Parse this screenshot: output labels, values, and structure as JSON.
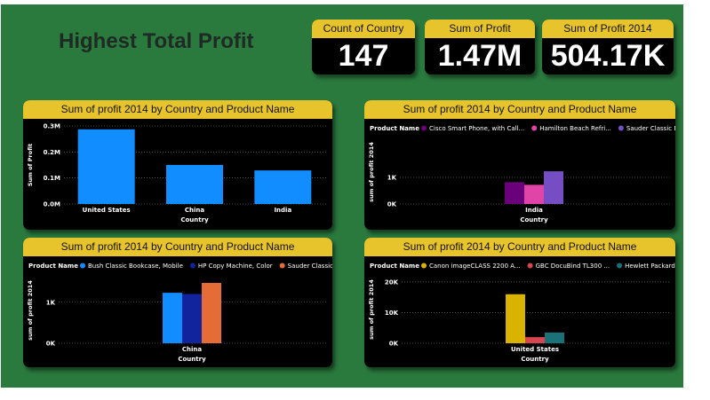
{
  "page_title": "Highest Total Profit",
  "kpis": [
    {
      "label": "Count of Country",
      "value": "147"
    },
    {
      "label": "Sum of Profit",
      "value": "1.47M"
    },
    {
      "label": "Sum of Profit 2014",
      "value": "504.17K"
    }
  ],
  "colors": {
    "background": "#2a7a3e",
    "accent": "#e8c42c",
    "panel": "#000000"
  },
  "chart_data": [
    {
      "type": "bar",
      "title": "Sum of profit 2014 by Country and Product Name",
      "xlabel": "Country",
      "ylabel": "Sum of Profit",
      "ylim": [
        0,
        300000
      ],
      "yticks": [
        {
          "v": 0,
          "label": "0.0M"
        },
        {
          "v": 100000,
          "label": "0.1M"
        },
        {
          "v": 200000,
          "label": "0.2M"
        },
        {
          "v": 300000,
          "label": "0.3M"
        }
      ],
      "categories": [
        "United States",
        "China",
        "India"
      ],
      "series": [
        {
          "name": "Sum of Profit",
          "color": "#118dff",
          "values": [
            287000,
            150000,
            129000
          ]
        }
      ]
    },
    {
      "type": "bar",
      "title": "Sum of profit 2014 by Country and Product Name",
      "xlabel": "Country",
      "ylabel": "sum of profit 2014",
      "legend_title": "Product Name",
      "ylim": [
        0,
        2400
      ],
      "yticks": [
        {
          "v": 0,
          "label": "0K"
        },
        {
          "v": 1000,
          "label": "1K"
        }
      ],
      "categories": [
        "India"
      ],
      "series": [
        {
          "name": "Cisco Smart Phone, with Call...",
          "color": "#6b007b",
          "values": [
            820
          ]
        },
        {
          "name": "Hamilton Beach Refri...",
          "color": "#e044a7",
          "values": [
            720
          ]
        },
        {
          "name": "Sauder Classic B...",
          "color": "#744ec2",
          "values": [
            1230
          ]
        }
      ]
    },
    {
      "type": "bar",
      "title": "Sum of profit 2014 by Country and Product Name",
      "xlabel": "Country",
      "ylabel": "sum of profit 2014",
      "legend_title": "Product Name",
      "ylim": [
        0,
        1600
      ],
      "yticks": [
        {
          "v": 0,
          "label": "0K"
        },
        {
          "v": 1000,
          "label": "1K"
        }
      ],
      "categories": [
        "China"
      ],
      "series": [
        {
          "name": "Bush Classic Bookcase, Mobile",
          "color": "#118dff",
          "values": [
            1230
          ]
        },
        {
          "name": "HP Copy Machine, Color",
          "color": "#12239e",
          "values": [
            1200
          ]
        },
        {
          "name": "Sauder Classic Bo...",
          "color": "#e66c37",
          "values": [
            1470
          ]
        }
      ]
    },
    {
      "type": "bar",
      "title": "Sum of profit 2014 by Country and Product Name",
      "xlabel": "Country",
      "ylabel": "sum of profit 2014",
      "legend_title": "Product Name",
      "ylim": [
        0,
        22000
      ],
      "yticks": [
        {
          "v": 0,
          "label": "0K"
        },
        {
          "v": 10000,
          "label": "10K"
        },
        {
          "v": 20000,
          "label": "20K"
        }
      ],
      "categories": [
        "United States"
      ],
      "series": [
        {
          "name": "Canon imageCLASS 2200 A...",
          "color": "#d9b300",
          "values": [
            16000
          ]
        },
        {
          "name": "GBC DocuBind TL300 ...",
          "color": "#d64550",
          "values": [
            2000
          ]
        },
        {
          "name": "Hewlett Packard ...",
          "color": "#197278",
          "values": [
            3500
          ]
        }
      ]
    }
  ]
}
